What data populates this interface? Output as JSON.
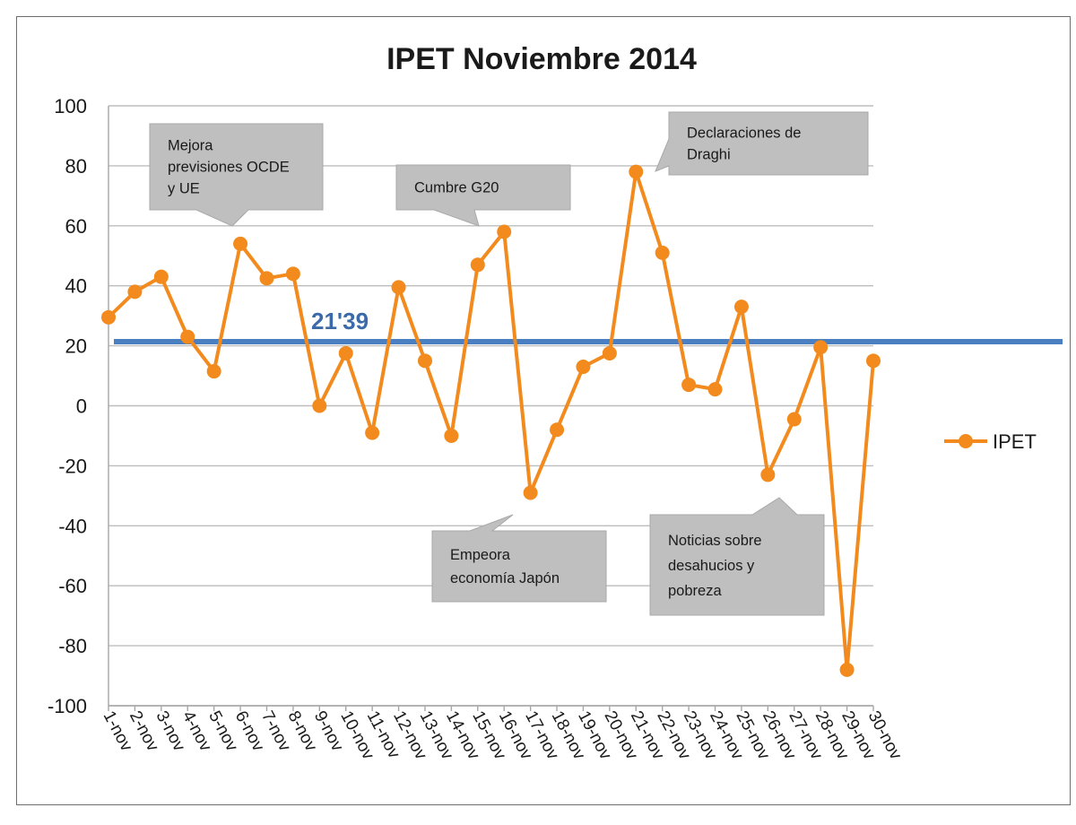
{
  "chart_data": {
    "type": "line",
    "title": "IPET Noviembre 2014",
    "xlabel": "",
    "ylabel": "",
    "ylim": [
      -100,
      100
    ],
    "yticks": [
      100,
      80,
      60,
      40,
      20,
      0,
      -20,
      -40,
      -60,
      -80,
      -100
    ],
    "grid": true,
    "legend_position": "right",
    "categories": [
      "1-nov",
      "2-nov",
      "3-nov",
      "4-nov",
      "5-nov",
      "6-nov",
      "7-nov",
      "8-nov",
      "9-nov",
      "10-nov",
      "11-nov",
      "12-nov",
      "13-nov",
      "14-nov",
      "15-nov",
      "16-nov",
      "17-nov",
      "18-nov",
      "19-nov",
      "20-nov",
      "21-nov",
      "22-nov",
      "23-nov",
      "24-nov",
      "25-nov",
      "26-nov",
      "27-nov",
      "28-nov",
      "29-nov",
      "30-nov"
    ],
    "series": [
      {
        "name": "IPET",
        "color": "#f28a1d",
        "values": [
          29.5,
          38,
          43,
          23,
          11.5,
          54,
          42.5,
          44,
          0,
          17.5,
          -9,
          39.5,
          15,
          -10,
          47,
          58,
          -29,
          -8,
          13,
          17.5,
          78,
          51,
          7,
          5.5,
          33,
          -23,
          -4.5,
          19.5,
          -88,
          15
        ]
      }
    ],
    "reference_line": {
      "value": 21.39,
      "label": "21'39",
      "color": "#4a7fc1"
    },
    "annotations": [
      {
        "text_lines": [
          "Mejora",
          "previsiones OCDE",
          "y UE"
        ],
        "target": "6-nov"
      },
      {
        "text_lines": [
          "Cumbre G20"
        ],
        "target": "16-nov"
      },
      {
        "text_lines": [
          "Declaraciones de",
          "Draghi"
        ],
        "target": "21-nov"
      },
      {
        "text_lines": [
          "Empeora",
          "economía Japón"
        ],
        "target": "17-nov"
      },
      {
        "text_lines": [
          "Noticias sobre",
          "desahucios y",
          "pobreza"
        ],
        "target": "26-nov"
      }
    ],
    "callout_color": "#bfbfbf"
  }
}
